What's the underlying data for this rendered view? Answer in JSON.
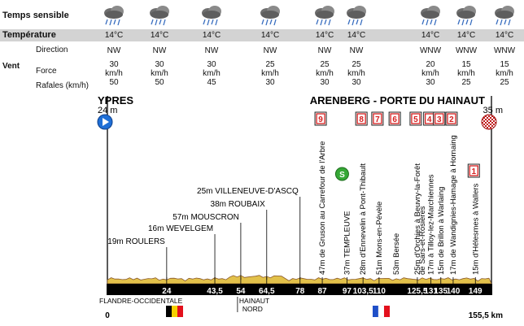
{
  "weather": {
    "labels": {
      "temps_sensible": "Temps sensible",
      "temperature": "Température",
      "direction": "Direction",
      "vent": "Vent",
      "force": "Force",
      "rafales": "Rafales (km/h)"
    },
    "icon": "rain-cloud-icon",
    "columns": [
      {
        "temp": "14°C",
        "dir": "NW",
        "force": "30",
        "unit": "km/h",
        "gusts": "50"
      },
      {
        "temp": "14°C",
        "dir": "NW",
        "force": "30",
        "unit": "km/h",
        "gusts": "50"
      },
      {
        "temp": "14°C",
        "dir": "NW",
        "force": "30",
        "unit": "km/h",
        "gusts": "45"
      },
      {
        "temp": "14°C",
        "dir": "NW",
        "force": "25",
        "unit": "km/h",
        "gusts": "30"
      },
      {
        "temp": "14°C",
        "dir": "NW",
        "force": "25",
        "unit": "km/h",
        "gusts": "30"
      },
      {
        "temp": "14°C",
        "dir": "NW",
        "force": "25",
        "unit": "km/h",
        "gusts": "30"
      },
      {
        "temp": "14°C",
        "dir": "WNW",
        "force": "20",
        "unit": "km/h",
        "gusts": "30"
      },
      {
        "temp": "14°C",
        "dir": "WNW",
        "force": "15",
        "unit": "km/h",
        "gusts": "25"
      },
      {
        "temp": "14°C",
        "dir": "WNW",
        "force": "15",
        "unit": "km/h",
        "gusts": "25"
      }
    ]
  },
  "chart_data": {
    "type": "area",
    "start": {
      "name": "YPRES",
      "alt": "24 m"
    },
    "finish": {
      "name": "ARENBERG - PORTE DU HAINAUT",
      "alt": "35 m"
    },
    "xlim": [
      0,
      155.5
    ],
    "x_start_label": "0",
    "x_end_label": "155,5 km",
    "km_ticks": [
      "24",
      "43,5",
      "54",
      "64,5",
      "78",
      "87",
      "97",
      "103,5",
      "110",
      "125,5",
      "131",
      "135",
      "140",
      "149"
    ],
    "km_values": [
      24,
      43.5,
      54,
      64.5,
      78,
      87,
      97,
      103.5,
      110,
      125.5,
      131,
      135,
      140,
      149
    ],
    "places": [
      {
        "km": 24,
        "label": "19m ROULERS"
      },
      {
        "km": 43.5,
        "label": "16m WEVELGEM"
      },
      {
        "km": 54,
        "label": "57m MOUSCRON"
      },
      {
        "km": 64.5,
        "label": "38m ROUBAIX"
      },
      {
        "km": 78,
        "label": "25m VILLENEUVE-D'ASCQ"
      }
    ],
    "vertical_places": [
      {
        "km": 87,
        "label": "47m de Gruson au Carrefour de l'Arbre"
      },
      {
        "km": 97,
        "label": "37m TEMPLEUVE"
      },
      {
        "km": 103.5,
        "label": "28m d'Ennevelin à Pont-Thibault"
      },
      {
        "km": 110,
        "label": "51m Mons-en-Pévèle"
      },
      {
        "km": 117,
        "label": "53m Bersée"
      },
      {
        "km": 125.5,
        "label": "25m d'Orchies à Beuvry-la-Forêt"
      },
      {
        "km": 127.5,
        "label": "de Sars-et-Rosières"
      },
      {
        "km": 131,
        "label": "17m à Tilloy-lez-Marchiennes"
      },
      {
        "km": 135,
        "label": "15m de Brillon à Warlaing"
      },
      {
        "km": 140,
        "label": "17m de Wandignies-Hamage à Hornaing"
      },
      {
        "km": 149,
        "label": "15m d'Hélesmes à Wallers"
      }
    ],
    "cobbles": [
      {
        "num": "9",
        "km": 87
      },
      {
        "num": "8",
        "km": 103.5
      },
      {
        "num": "7",
        "km": 110
      },
      {
        "num": "6",
        "km": 117
      },
      {
        "num": "5",
        "km": 125.5
      },
      {
        "num": "4",
        "km": 131
      },
      {
        "num": "3",
        "km": 135
      },
      {
        "num": "2",
        "km": 140
      },
      {
        "num": "1",
        "km": 149
      }
    ],
    "sprint": {
      "km": 97,
      "label": "S"
    },
    "regions": [
      "FLANDRE-OCCIDENTALE",
      "HAINAUT",
      "NORD"
    ],
    "colors": {
      "terrain": "#e2c14a",
      "terrain_edge": "#8b5a2b",
      "band": "#000000",
      "cobble": "#d62020",
      "start": "#1f6fd6",
      "sprint": "#36a836"
    }
  }
}
